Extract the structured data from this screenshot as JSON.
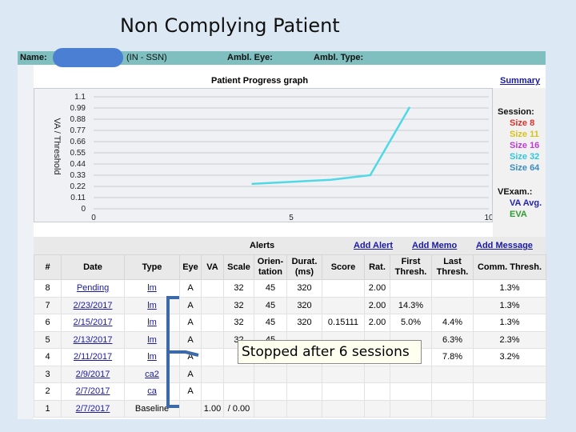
{
  "slide_title": "Non Complying Patient",
  "header": {
    "name_label": "Name:",
    "ssn_text": "(IN - SSN)",
    "ambl_eye_label": "Ambl. Eye:",
    "ambl_type_label": "Ambl. Type:"
  },
  "graph": {
    "title": "Patient Progress graph",
    "summary_link": "Summary"
  },
  "chart_data": {
    "type": "line",
    "ylabel": "VA / Threshold",
    "yticks": [
      "1.1",
      "0.99",
      "0.88",
      "0.77",
      "0.66",
      "0.55",
      "0.44",
      "0.33",
      "0.22",
      "0.11",
      "0"
    ],
    "xticks": [
      "0",
      "5",
      "10"
    ],
    "xlim": [
      0,
      10
    ],
    "ylim": [
      0,
      1.1
    ],
    "grid": true,
    "series": [
      {
        "color": "#4fd8e6",
        "x": [
          4,
          6,
          7,
          8
        ],
        "y": [
          0.245,
          0.285,
          0.33,
          1.0
        ]
      }
    ],
    "legend": {
      "session_title": "Session:",
      "sizes": [
        {
          "label": "Size 8",
          "color": "#e0302a"
        },
        {
          "label": "Size 11",
          "color": "#d8c21a"
        },
        {
          "label": "Size 16",
          "color": "#c03ad8"
        },
        {
          "label": "Size 32",
          "color": "#2fc6e0"
        },
        {
          "label": "Size 64",
          "color": "#3a8cc0"
        }
      ],
      "vexam_title": "VExam.:",
      "exams": [
        {
          "label": "VA Avg.",
          "color": "#2424b0"
        },
        {
          "label": "EVA",
          "color": "#2e9c2e"
        }
      ]
    }
  },
  "alerts_bar": {
    "title": "Alerts",
    "add_alert": "Add Alert",
    "add_memo": "Add Memo",
    "add_message": "Add Message"
  },
  "table": {
    "headers": [
      "#",
      "Date",
      "Type",
      "Eye",
      "VA",
      "Scale",
      "Orien-tation",
      "Durat. (ms)",
      "Score",
      "Rat.",
      "First Thresh.",
      "Last Thresh.",
      "Comm. Thresh."
    ],
    "rows": [
      [
        "8",
        "Pending",
        "lm",
        "A",
        "",
        "32",
        "45",
        "320",
        "",
        "2.00",
        "",
        "",
        "1.3%"
      ],
      [
        "7",
        "2/23/2017",
        "lm",
        "A",
        "",
        "32",
        "45",
        "320",
        "",
        "2.00",
        "14.3%",
        "",
        "1.3%"
      ],
      [
        "6",
        "2/15/2017",
        "lm",
        "A",
        "",
        "32",
        "45",
        "320",
        "0.15111",
        "2.00",
        "5.0%",
        "4.4%",
        "1.3%"
      ],
      [
        "5",
        "2/13/2017",
        "lm",
        "A",
        "",
        "32",
        "45",
        "",
        "",
        "",
        "",
        "6.3%",
        "2.3%"
      ],
      [
        "4",
        "2/11/2017",
        "lm",
        "A",
        "",
        "",
        "",
        "",
        "",
        "",
        "",
        "7.8%",
        "3.2%"
      ],
      [
        "3",
        "2/9/2017",
        "ca2",
        "A",
        "",
        "",
        "",
        "",
        "",
        "",
        "",
        "",
        ""
      ],
      [
        "2",
        "2/7/2017",
        "ca",
        "A",
        "",
        "",
        "",
        "",
        "",
        "",
        "",
        "",
        ""
      ],
      [
        "1",
        "2/7/2017",
        "Baseline",
        "",
        "1.00",
        "/ 0.00",
        "",
        "",
        "",
        "",
        "",
        "",
        ""
      ]
    ]
  },
  "callout": "Stopped after 6 sessions"
}
